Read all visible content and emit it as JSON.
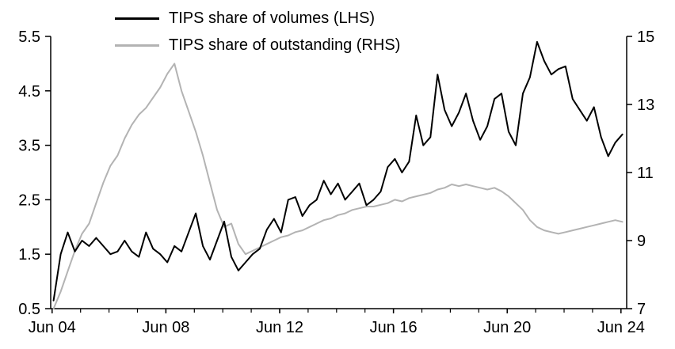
{
  "chart_data": {
    "type": "line",
    "grid": false,
    "legend_position": "top-left",
    "x_tick_labels": [
      "Jun 04",
      "Jun 08",
      "Jun 12",
      "Jun 16",
      "Jun 20",
      "Jun 24"
    ],
    "x_label_positions": [
      2004.45,
      2008.45,
      2012.45,
      2016.45,
      2020.45,
      2024.45
    ],
    "x_range": [
      2004.4,
      2024.65
    ],
    "ylim_left": [
      0.5,
      5.5
    ],
    "left_tick_values": [
      0.5,
      1.5,
      2.5,
      3.5,
      4.5,
      5.5
    ],
    "left_tick_labels": [
      "0.5",
      "1.5",
      "2.5",
      "3.5",
      "4.5",
      "5.5"
    ],
    "ylim_right": [
      7,
      15
    ],
    "right_tick_values": [
      7,
      9,
      11,
      13,
      15
    ],
    "right_tick_labels": [
      "7",
      "9",
      "11",
      "13",
      "15"
    ],
    "x": [
      2004.5,
      2004.75,
      2005,
      2005.25,
      2005.5,
      2005.75,
      2006,
      2006.25,
      2006.5,
      2006.75,
      2007,
      2007.25,
      2007.5,
      2007.75,
      2008,
      2008.25,
      2008.5,
      2008.75,
      2009,
      2009.25,
      2009.5,
      2009.75,
      2010,
      2010.25,
      2010.5,
      2010.75,
      2011,
      2011.25,
      2011.5,
      2011.75,
      2012,
      2012.25,
      2012.5,
      2012.75,
      2013,
      2013.25,
      2013.5,
      2013.75,
      2014,
      2014.25,
      2014.5,
      2014.75,
      2015,
      2015.25,
      2015.5,
      2015.75,
      2016,
      2016.25,
      2016.5,
      2016.75,
      2017,
      2017.25,
      2017.5,
      2017.75,
      2018,
      2018.25,
      2018.5,
      2018.75,
      2019,
      2019.25,
      2019.5,
      2019.75,
      2020,
      2020.25,
      2020.5,
      2020.75,
      2021,
      2021.25,
      2021.5,
      2021.75,
      2022,
      2022.25,
      2022.5,
      2022.75,
      2023,
      2023.25,
      2023.5,
      2023.75,
      2024,
      2024.25,
      2024.5
    ],
    "series": [
      {
        "name": "TIPS share of volumes (LHS)",
        "axis": "left",
        "color": "#000000",
        "values": [
          0.65,
          1.5,
          1.9,
          1.55,
          1.75,
          1.65,
          1.8,
          1.65,
          1.5,
          1.55,
          1.75,
          1.55,
          1.45,
          1.9,
          1.6,
          1.5,
          1.35,
          1.65,
          1.55,
          1.9,
          2.25,
          1.65,
          1.4,
          1.75,
          2.1,
          1.45,
          1.2,
          1.35,
          1.5,
          1.6,
          1.95,
          2.15,
          1.9,
          2.5,
          2.55,
          2.2,
          2.4,
          2.5,
          2.85,
          2.6,
          2.8,
          2.5,
          2.65,
          2.8,
          2.4,
          2.5,
          2.65,
          3.1,
          3.25,
          3.0,
          3.2,
          4.05,
          3.5,
          3.65,
          4.8,
          4.15,
          3.85,
          4.1,
          4.45,
          3.95,
          3.6,
          3.85,
          4.35,
          4.45,
          3.75,
          3.5,
          4.45,
          4.75,
          5.4,
          5.05,
          4.8,
          4.9,
          4.95,
          4.35,
          4.15,
          3.95,
          4.2,
          3.65,
          3.3,
          3.55,
          3.7
        ]
      },
      {
        "name": "TIPS share of outstanding (RHS)",
        "axis": "right",
        "color": "#b3b3b3",
        "values": [
          7.0,
          7.5,
          8.1,
          8.7,
          9.2,
          9.5,
          10.1,
          10.7,
          11.2,
          11.5,
          12.0,
          12.4,
          12.7,
          12.9,
          13.2,
          13.5,
          13.9,
          14.2,
          13.4,
          12.8,
          12.2,
          11.5,
          10.7,
          9.9,
          9.4,
          9.5,
          8.9,
          8.6,
          8.7,
          8.8,
          8.9,
          9.0,
          9.1,
          9.15,
          9.25,
          9.3,
          9.4,
          9.5,
          9.6,
          9.65,
          9.75,
          9.8,
          9.9,
          9.95,
          10.0,
          10.0,
          10.05,
          10.1,
          10.2,
          10.15,
          10.25,
          10.3,
          10.35,
          10.4,
          10.5,
          10.55,
          10.65,
          10.6,
          10.65,
          10.6,
          10.55,
          10.5,
          10.55,
          10.45,
          10.3,
          10.1,
          9.9,
          9.6,
          9.4,
          9.3,
          9.25,
          9.2,
          9.25,
          9.3,
          9.35,
          9.4,
          9.45,
          9.5,
          9.55,
          9.6,
          9.55
        ]
      }
    ]
  },
  "colors": {
    "background": "#ffffff",
    "axis": "#000000",
    "volumes_line": "#000000",
    "outstanding_line": "#b3b3b3"
  }
}
